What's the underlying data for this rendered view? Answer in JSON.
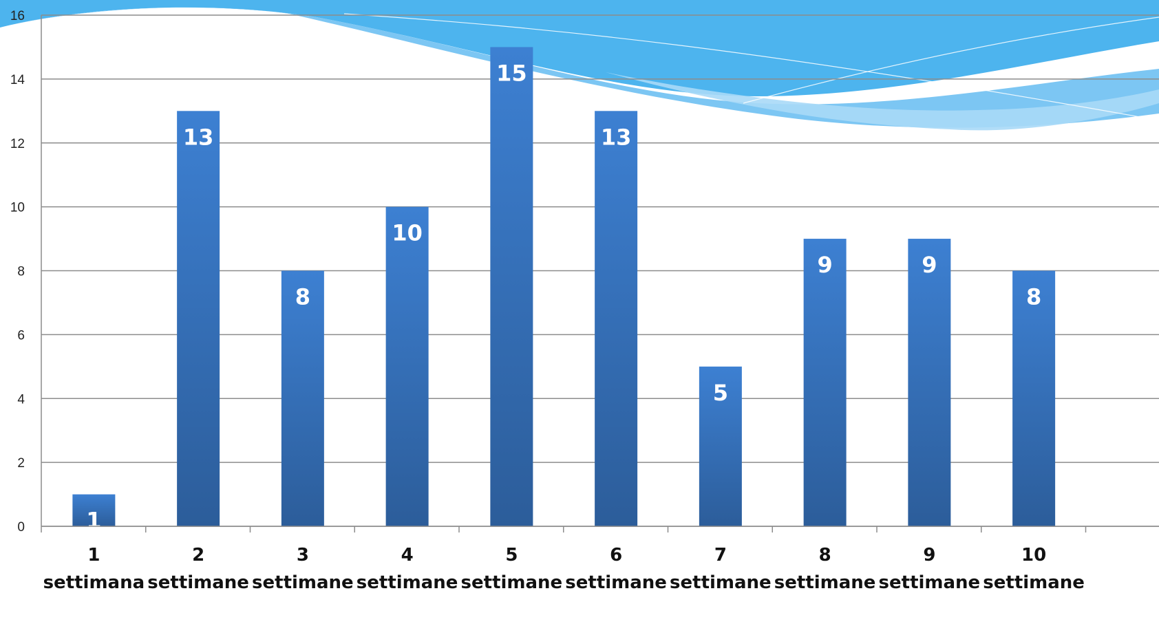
{
  "chart_data": {
    "type": "bar",
    "categories": [
      [
        "1",
        "settimana"
      ],
      [
        "2",
        "settimane"
      ],
      [
        "3",
        "settimane"
      ],
      [
        "4",
        "settimane"
      ],
      [
        "5",
        "settimane"
      ],
      [
        "6",
        "settimane"
      ],
      [
        "7",
        "settimane"
      ],
      [
        "8",
        "settimane"
      ],
      [
        "9",
        "settimane"
      ],
      [
        "10",
        "settimane"
      ]
    ],
    "values": [
      1,
      13,
      8,
      10,
      15,
      13,
      5,
      9,
      9,
      8
    ],
    "data_labels": [
      "1",
      "13",
      "8",
      "10",
      "15",
      "13",
      "5",
      "9",
      "9",
      "8"
    ],
    "y_ticks": [
      "0",
      "2",
      "4",
      "6",
      "8",
      "10",
      "12",
      "14",
      "16"
    ],
    "ylim": [
      0,
      16
    ],
    "grid": true,
    "legend": "none",
    "colors": {
      "bar_top": "#3d80d2",
      "bar_bottom": "#2c5d9a",
      "wave_light": "#a9d9f7",
      "wave_mid": "#7cc6f3",
      "wave_dark": "#4db4ee"
    }
  }
}
